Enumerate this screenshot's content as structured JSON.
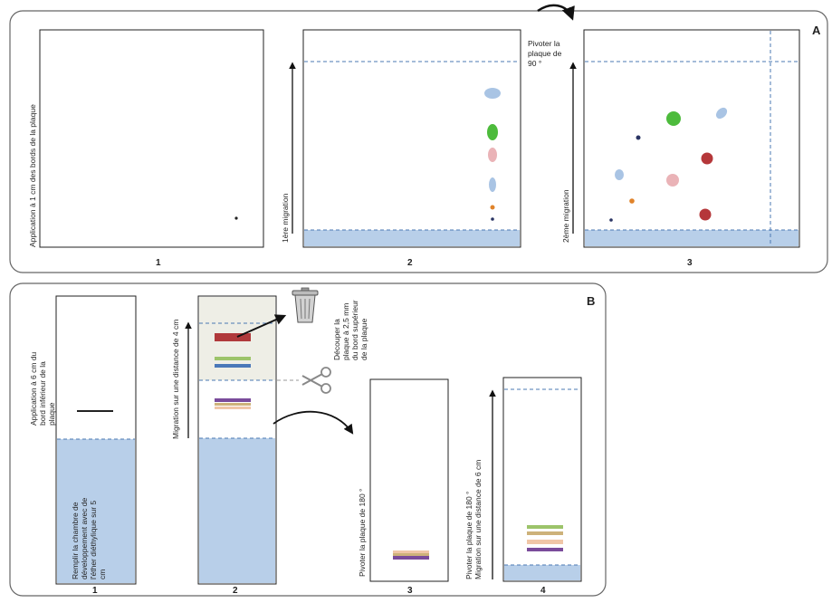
{
  "panelA": {
    "letter": "A",
    "plate1_caption": "Application à 1 cm des bords de la plaque",
    "plate1_number": "1",
    "plate2_axis": "1ère migration",
    "plate2_number": "2",
    "rotate_line1": "Pivoter la",
    "rotate_line2": "plaque de",
    "rotate_line3": "90 °",
    "plate3_axis": "2ème migration",
    "plate3_number": "3"
  },
  "panelB": {
    "letter": "B",
    "tube1_app_line1": "Application à 6 cm du",
    "tube1_app_line2": "bord inférieur de la",
    "tube1_app_line3": "plaque",
    "tube1_fill_line1": "Remplir la chambre de",
    "tube1_fill_line2": "développement avec de",
    "tube1_fill_line3": "l'éther diéthylique sur  5",
    "tube1_fill_line4": "cm",
    "tube1_number": "1",
    "tube2_migration": "Migration sur une distance de 4 cm",
    "tube2_number": "2",
    "cut_line1": "Découper la",
    "cut_line2": "plaque à 2,5 mm",
    "cut_line3": "du bord supérieur",
    "cut_line4": "de la plaque",
    "tube3_text": "Pivoter la plaque de 180 °",
    "tube3_number": "3",
    "tube4_line1": "Pivoter la plaque de 180 °",
    "tube4_line2": "Migration sur une distance de 6 cm",
    "tube4_number": "4"
  },
  "colors": {
    "solvent_blue": "#b8cfe9",
    "dash_blue": "#4b78b3",
    "spot_blue": "#a9c4e4",
    "spot_green": "#4dbb3c",
    "spot_pink": "#eab3b7",
    "spot_red": "#b5373a",
    "spot_orange": "#e0832a",
    "spot_navy": "#2a3463",
    "band_red": "#b0393b",
    "band_green": "#9cc46a",
    "band_blue": "#4a78b9",
    "band_purple": "#7a4b9b",
    "band_tan": "#cdb27a",
    "band_peach": "#f0c6a7"
  },
  "icons": [
    "trash-can-icon",
    "scissors-icon",
    "rotate-arrow-icon"
  ]
}
